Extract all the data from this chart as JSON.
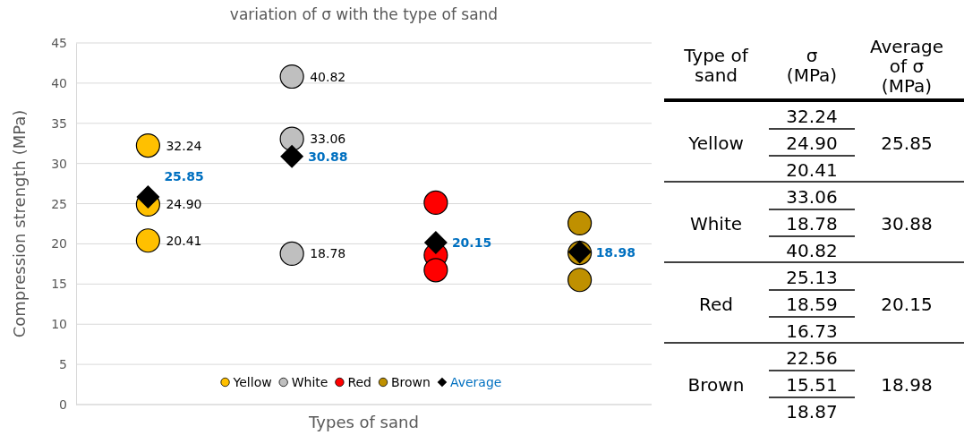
{
  "chart_data": [
    {
      "type": "scatter",
      "title": "variation of σ with the type of sand",
      "xlabel": "Types of sand",
      "ylabel": "Compression strength (MPa)",
      "categories": [
        null,
        null,
        null,
        null
      ],
      "ylim": [
        0,
        45
      ],
      "yticks": [
        0,
        5,
        10,
        15,
        20,
        25,
        30,
        35,
        40,
        45
      ],
      "tick_labels": "y",
      "grid": "y",
      "legend": "bottom",
      "series": [
        {
          "name": "Yellow",
          "color": "#ffc000",
          "marker": "circle",
          "values": [
            32.24,
            null,
            null,
            null
          ],
          "value_labels": [
            "32.24",
            null,
            null,
            null
          ]
        },
        {
          "color": "#ffc000",
          "marker": "circle",
          "values": [
            24.9,
            null,
            null,
            null
          ],
          "value_labels": [
            "24.90",
            null,
            null,
            null
          ]
        },
        {
          "color": "#ffc000",
          "marker": "circle",
          "values": [
            20.41,
            null,
            null,
            null
          ],
          "value_labels": [
            "20.41",
            null,
            null,
            null
          ]
        },
        {
          "name": "White",
          "color": "#bfbfbf",
          "marker": "circle",
          "values": [
            null,
            33.06,
            null,
            null
          ],
          "value_labels": [
            null,
            "33.06",
            null,
            null
          ]
        },
        {
          "color": "#bfbfbf",
          "marker": "circle",
          "values": [
            null,
            18.78,
            null,
            null
          ],
          "value_labels": [
            null,
            "18.78",
            null,
            null
          ]
        },
        {
          "color": "#bfbfbf",
          "marker": "circle",
          "values": [
            null,
            40.82,
            null,
            null
          ],
          "value_labels": [
            null,
            "40.82",
            null,
            null
          ]
        },
        {
          "name": "Red",
          "color": "#ff0000",
          "marker": "circle",
          "values": [
            null,
            null,
            25.13,
            null
          ]
        },
        {
          "color": "#ff0000",
          "marker": "circle",
          "values": [
            null,
            null,
            18.59,
            null
          ]
        },
        {
          "color": "#ff0000",
          "marker": "circle",
          "values": [
            null,
            null,
            16.73,
            null
          ]
        },
        {
          "name": "Brown",
          "color": "#bf9000",
          "marker": "circle",
          "values": [
            null,
            null,
            null,
            22.56
          ]
        },
        {
          "color": "#bf9000",
          "marker": "circle",
          "values": [
            null,
            null,
            null,
            15.51
          ]
        },
        {
          "color": "#bf9000",
          "marker": "circle",
          "values": [
            null,
            null,
            null,
            18.87
          ]
        },
        {
          "name": "Average",
          "color": "#000000",
          "marker": "diamond",
          "values": [
            25.85,
            30.88,
            20.15,
            18.98
          ],
          "value_labels": [
            "25.85",
            "30.88",
            "20.15",
            "18.98"
          ]
        }
      ]
    },
    {
      "type": "other",
      "legend_title": "Type of\nsand",
      "categories": [
        "Yellow",
        "White",
        "Red",
        "Brown"
      ],
      "series": [
        {
          "name": "σ\n(MPa)",
          "values": [
            32.24,
            33.06,
            25.13,
            22.56
          ],
          "value_labels": [
            "32.24",
            "33.06",
            "25.13",
            "22.56"
          ]
        },
        {
          "values": [
            24.9,
            18.78,
            18.59,
            15.51
          ],
          "value_labels": [
            "24.90",
            "18.78",
            "18.59",
            "15.51"
          ]
        },
        {
          "values": [
            20.41,
            40.82,
            16.73,
            18.87
          ],
          "value_labels": [
            "20.41",
            "40.82",
            "16.73",
            "18.87"
          ]
        },
        {
          "name": "Average\nof σ\n(MPa)",
          "values": [
            25.85,
            30.88,
            20.15,
            18.98
          ],
          "value_labels": [
            "25.85",
            "30.88",
            "20.15",
            "18.98"
          ]
        }
      ]
    }
  ]
}
